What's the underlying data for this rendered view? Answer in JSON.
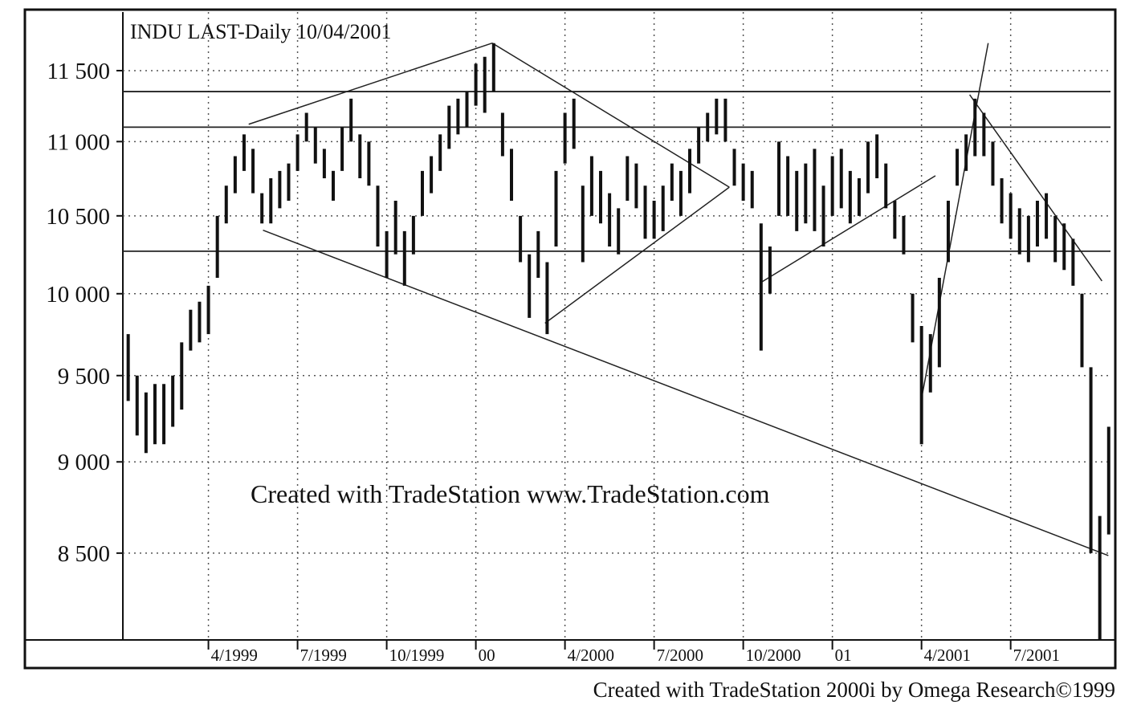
{
  "chart_data": {
    "type": "range_bar",
    "title": "INDU LAST-Daily   10/04/2001",
    "watermark": "Created with TradeStation  www.TradeStation.com",
    "footer": "Created with TradeStation 2000i by Omega Research©1999",
    "log_scale": true,
    "grid": true,
    "color": "#111111",
    "ylim": [
      8050,
      11930
    ],
    "yticks": [
      {
        "value": 8500,
        "label": "8 500"
      },
      {
        "value": 9000,
        "label": "9 000"
      },
      {
        "value": 9500,
        "label": "9 500"
      },
      {
        "value": 10000,
        "label": "10 000"
      },
      {
        "value": 10500,
        "label": "10 500"
      },
      {
        "value": 11000,
        "label": "11 000"
      },
      {
        "value": 11500,
        "label": "11 500"
      }
    ],
    "xlim": [
      1999.01,
      2001.78
    ],
    "xticks": [
      {
        "value": 1999.25,
        "label": "4/1999"
      },
      {
        "value": 1999.5,
        "label": "7/1999"
      },
      {
        "value": 1999.75,
        "label": "10/1999"
      },
      {
        "value": 2000,
        "label": "00"
      },
      {
        "value": 2000.25,
        "label": "4/2000"
      },
      {
        "value": 2000.5,
        "label": "7/2000"
      },
      {
        "value": 2000.75,
        "label": "10/2000"
      },
      {
        "value": 2001,
        "label": "01"
      },
      {
        "value": 2001.25,
        "label": "4/2001"
      },
      {
        "value": 2001.5,
        "label": "7/2001"
      }
    ],
    "x": [
      1999.025,
      1999.05,
      1999.075,
      1999.1,
      1999.125,
      1999.15,
      1999.175,
      1999.2,
      1999.225,
      1999.25,
      1999.275,
      1999.3,
      1999.325,
      1999.35,
      1999.375,
      1999.4,
      1999.425,
      1999.45,
      1999.475,
      1999.5,
      1999.525,
      1999.55,
      1999.575,
      1999.6,
      1999.625,
      1999.65,
      1999.675,
      1999.7,
      1999.725,
      1999.75,
      1999.775,
      1999.8,
      1999.825,
      1999.85,
      1999.875,
      1999.9,
      1999.925,
      1999.95,
      1999.975,
      2000,
      2000.025,
      2000.05,
      2000.075,
      2000.1,
      2000.125,
      2000.15,
      2000.175,
      2000.2,
      2000.225,
      2000.25,
      2000.275,
      2000.3,
      2000.325,
      2000.35,
      2000.375,
      2000.4,
      2000.425,
      2000.45,
      2000.475,
      2000.5,
      2000.525,
      2000.55,
      2000.575,
      2000.6,
      2000.625,
      2000.65,
      2000.675,
      2000.7,
      2000.725,
      2000.75,
      2000.775,
      2000.8,
      2000.825,
      2000.85,
      2000.875,
      2000.9,
      2000.925,
      2000.95,
      2000.975,
      2001,
      2001.025,
      2001.05,
      2001.075,
      2001.1,
      2001.125,
      2001.15,
      2001.175,
      2001.2,
      2001.225,
      2001.25,
      2001.275,
      2001.3,
      2001.325,
      2001.35,
      2001.375,
      2001.4,
      2001.425,
      2001.45,
      2001.475,
      2001.5,
      2001.525,
      2001.55,
      2001.575,
      2001.6,
      2001.625,
      2001.65,
      2001.675,
      2001.7,
      2001.725,
      2001.75,
      2001.775
    ],
    "high": [
      9750,
      9500,
      9400,
      9450,
      9450,
      9500,
      9700,
      9900,
      9950,
      10050,
      10500,
      10700,
      10900,
      11050,
      10950,
      10650,
      10750,
      10800,
      10850,
      11050,
      11200,
      11100,
      10950,
      10800,
      11100,
      11300,
      11050,
      11000,
      10700,
      10400,
      10600,
      10400,
      10500,
      10800,
      10900,
      11050,
      11250,
      11300,
      11350,
      11550,
      11600,
      11700,
      11200,
      10950,
      10500,
      10250,
      10400,
      10200,
      10800,
      11200,
      11300,
      10700,
      10900,
      10800,
      10650,
      10550,
      10900,
      10850,
      10700,
      10600,
      10700,
      10850,
      10800,
      10950,
      11100,
      11200,
      11300,
      11300,
      10950,
      10850,
      10800,
      10450,
      10300,
      11000,
      10900,
      10800,
      10850,
      10950,
      10700,
      10900,
      10950,
      10800,
      10750,
      11000,
      11050,
      10850,
      10600,
      10500,
      10000,
      9800,
      9750,
      10100,
      10600,
      10950,
      11050,
      11300,
      11200,
      11000,
      10750,
      10650,
      10550,
      10500,
      10600,
      10650,
      10500,
      10450,
      10350,
      10000,
      9550,
      8700,
      9200
    ],
    "low": [
      9350,
      9150,
      9050,
      9100,
      9100,
      9200,
      9300,
      9650,
      9700,
      9750,
      10100,
      10450,
      10650,
      10800,
      10650,
      10450,
      10450,
      10550,
      10600,
      10800,
      11000,
      10850,
      10750,
      10600,
      10800,
      11000,
      10750,
      10700,
      10300,
      10100,
      10250,
      10050,
      10250,
      10500,
      10650,
      10800,
      10950,
      11050,
      11100,
      11250,
      11200,
      11350,
      10900,
      10600,
      10200,
      9850,
      10100,
      9750,
      10300,
      10850,
      10950,
      10200,
      10500,
      10450,
      10300,
      10250,
      10600,
      10550,
      10350,
      10350,
      10400,
      10600,
      10500,
      10650,
      10850,
      11000,
      11050,
      11000,
      10700,
      10600,
      10550,
      9650,
      10000,
      10500,
      10500,
      10400,
      10450,
      10400,
      10300,
      10500,
      10550,
      10450,
      10500,
      10650,
      10750,
      10550,
      10350,
      10250,
      9700,
      9100,
      9400,
      9550,
      10200,
      10700,
      10800,
      10900,
      10900,
      10700,
      10450,
      10350,
      10250,
      10200,
      10300,
      10350,
      10200,
      10150,
      10050,
      9550,
      8500,
      8050,
      8600
    ],
    "hlines": [
      11350,
      11100,
      10270
    ],
    "trendlines": [
      {
        "x": [
          1999.363,
          2000.046
        ],
        "y": [
          11120,
          11700
        ]
      },
      {
        "x": [
          2000.046,
          2000.711
        ],
        "y": [
          11700,
          10690
        ]
      },
      {
        "x": [
          1999.403,
          2001.774
        ],
        "y": [
          10406,
          8487
        ]
      },
      {
        "x": [
          2000.194,
          2000.711
        ],
        "y": [
          9817,
          10690
        ]
      },
      {
        "x": [
          2000.797,
          2001.289
        ],
        "y": [
          10067,
          10767
        ]
      },
      {
        "x": [
          2001.25,
          2001.437
        ],
        "y": [
          9364,
          11700
        ]
      },
      {
        "x": [
          2001.385,
          2001.756
        ],
        "y": [
          11328,
          10080
        ]
      }
    ]
  }
}
